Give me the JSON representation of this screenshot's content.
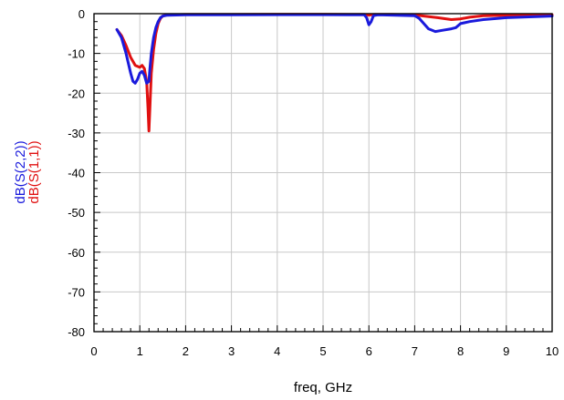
{
  "chart_data": {
    "type": "line",
    "xlabel": "freq, GHz",
    "ylabels": [
      {
        "text": "dB(S(2,2))",
        "color": "#1a1adc"
      },
      {
        "text": "dB(S(1,1))",
        "color": "#e01010"
      }
    ],
    "xlim": [
      0,
      10
    ],
    "ylim": [
      -80,
      0
    ],
    "xticks": [
      0,
      1,
      2,
      3,
      4,
      5,
      6,
      7,
      8,
      9,
      10
    ],
    "yticks": [
      0,
      -10,
      -20,
      -30,
      -40,
      -50,
      -60,
      -70,
      -80
    ],
    "grid": true,
    "series": [
      {
        "id": "s11",
        "color": "#e01010",
        "points": [
          [
            0.5,
            -4
          ],
          [
            0.6,
            -5.5
          ],
          [
            0.7,
            -8
          ],
          [
            0.8,
            -11
          ],
          [
            0.9,
            -13
          ],
          [
            1.0,
            -13.5
          ],
          [
            1.05,
            -13
          ],
          [
            1.1,
            -13.8
          ],
          [
            1.15,
            -17
          ],
          [
            1.18,
            -24
          ],
          [
            1.2,
            -29.5
          ],
          [
            1.22,
            -24
          ],
          [
            1.25,
            -15
          ],
          [
            1.3,
            -9
          ],
          [
            1.35,
            -5
          ],
          [
            1.4,
            -2.5
          ],
          [
            1.45,
            -1.2
          ],
          [
            1.5,
            -0.6
          ],
          [
            1.6,
            -0.3
          ],
          [
            2.0,
            -0.2
          ],
          [
            3.0,
            -0.2
          ],
          [
            4.0,
            -0.15
          ],
          [
            5.0,
            -0.15
          ],
          [
            5.9,
            -0.2
          ],
          [
            6.0,
            -0.4
          ],
          [
            6.1,
            -0.2
          ],
          [
            6.5,
            -0.2
          ],
          [
            7.0,
            -0.3
          ],
          [
            7.2,
            -0.6
          ],
          [
            7.5,
            -1.0
          ],
          [
            7.8,
            -1.5
          ],
          [
            8.0,
            -1.3
          ],
          [
            8.2,
            -0.9
          ],
          [
            8.5,
            -0.5
          ],
          [
            9.0,
            -0.4
          ],
          [
            9.5,
            -0.3
          ],
          [
            10.0,
            -0.3
          ]
        ]
      },
      {
        "id": "s22",
        "color": "#1a1adc",
        "points": [
          [
            0.5,
            -4
          ],
          [
            0.6,
            -6
          ],
          [
            0.7,
            -10
          ],
          [
            0.8,
            -15
          ],
          [
            0.85,
            -17
          ],
          [
            0.9,
            -17.5
          ],
          [
            0.95,
            -16.5
          ],
          [
            1.0,
            -15
          ],
          [
            1.05,
            -14.5
          ],
          [
            1.1,
            -15.5
          ],
          [
            1.15,
            -17.5
          ],
          [
            1.2,
            -17
          ],
          [
            1.22,
            -14
          ],
          [
            1.25,
            -10
          ],
          [
            1.3,
            -6
          ],
          [
            1.35,
            -3.5
          ],
          [
            1.4,
            -2
          ],
          [
            1.45,
            -1
          ],
          [
            1.5,
            -0.6
          ],
          [
            1.6,
            -0.4
          ],
          [
            2.0,
            -0.3
          ],
          [
            3.0,
            -0.3
          ],
          [
            4.0,
            -0.25
          ],
          [
            5.0,
            -0.25
          ],
          [
            5.9,
            -0.3
          ],
          [
            5.95,
            -1
          ],
          [
            6.0,
            -2.8
          ],
          [
            6.05,
            -2
          ],
          [
            6.1,
            -0.5
          ],
          [
            6.2,
            -0.3
          ],
          [
            7.0,
            -0.5
          ],
          [
            7.1,
            -1.2
          ],
          [
            7.2,
            -2.5
          ],
          [
            7.3,
            -3.8
          ],
          [
            7.45,
            -4.5
          ],
          [
            7.6,
            -4.2
          ],
          [
            7.8,
            -3.8
          ],
          [
            7.9,
            -3.5
          ],
          [
            8.0,
            -2.5
          ],
          [
            8.2,
            -2.0
          ],
          [
            8.5,
            -1.5
          ],
          [
            8.8,
            -1.2
          ],
          [
            9.0,
            -1.0
          ],
          [
            9.5,
            -0.8
          ],
          [
            10.0,
            -0.6
          ]
        ]
      }
    ]
  }
}
